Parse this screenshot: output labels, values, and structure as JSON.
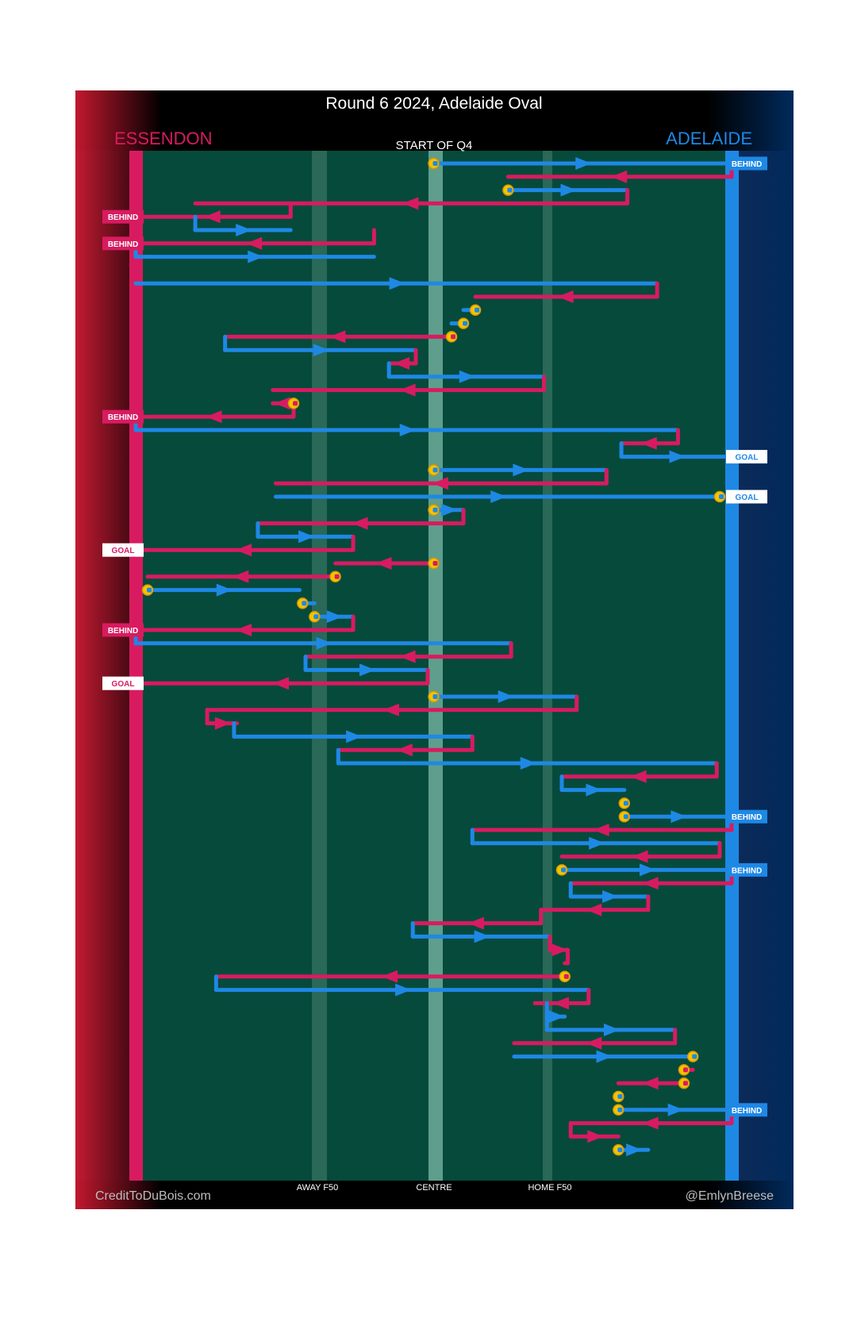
{
  "title": "Round 6 2024, Adelaide Oval",
  "teams": {
    "away": {
      "name": "ESSENDON",
      "color": "#d81b60"
    },
    "home": {
      "name": "ADELAIDE",
      "color": "#1e88e5"
    }
  },
  "subtitle": "START OF Q4",
  "axis_labels": {
    "away_f50": "AWAY F50",
    "centre": "CENTRE",
    "home_f50": "HOME F50"
  },
  "credits": {
    "left": "CreditToDuBois.com",
    "right": "@EmlynBreese"
  },
  "chart_data": {
    "type": "line",
    "title": "Round 6 2024, Adelaide Oval",
    "subtitle": "START OF Q4",
    "description": "Ball movement chain chart; x = field position from Essendon goal (0) to Adelaide goal (100), y = chain step in time order",
    "xlim": [
      0,
      100
    ],
    "x_ticks": [
      {
        "label": "AWAY F50",
        "x": 30
      },
      {
        "label": "CENTRE",
        "x": 50
      },
      {
        "label": "HOME F50",
        "x": 70
      }
    ],
    "ylim": [
      1,
      76
    ],
    "series": [
      {
        "name": "ADELAIDE",
        "color": "#1e88e5",
        "segments": [
          {
            "step": 1,
            "from": 50,
            "to": 100
          },
          {
            "step": 3,
            "from": 62.5,
            "to": 82.5
          },
          {
            "step": 6,
            "from": 10,
            "to": 26
          },
          {
            "step": 8,
            "from": 0,
            "to": 40
          },
          {
            "step": 10,
            "from": 0,
            "to": 87.5
          },
          {
            "step": 12,
            "from": 57,
            "to": 55
          },
          {
            "step": 13,
            "from": 55,
            "to": 53
          },
          {
            "step": 15,
            "from": 15,
            "to": 47
          },
          {
            "step": 17,
            "from": 42.5,
            "to": 68.5
          },
          {
            "step": 21,
            "from": 0,
            "to": 91
          },
          {
            "step": 23,
            "from": 81.5,
            "to": 100
          },
          {
            "step": 24,
            "from": 50,
            "to": 79
          },
          {
            "step": 26,
            "from": 23.5,
            "to": 98
          },
          {
            "step": 27,
            "from": 50,
            "to": 55
          },
          {
            "step": 29,
            "from": 20.5,
            "to": 36.5
          },
          {
            "step": 33,
            "from": 2,
            "to": 27.5
          },
          {
            "step": 34,
            "from": 28,
            "to": 30
          },
          {
            "step": 35,
            "from": 30,
            "to": 36.5
          },
          {
            "step": 37,
            "from": 0,
            "to": 63
          },
          {
            "step": 39,
            "from": 28.5,
            "to": 49
          },
          {
            "step": 41,
            "from": 50,
            "to": 74
          },
          {
            "step": 44,
            "from": 16.5,
            "to": 56.5
          },
          {
            "step": 46,
            "from": 34,
            "to": 97.5
          },
          {
            "step": 48,
            "from": 71.5,
            "to": 82
          },
          {
            "step": 49,
            "from": 82,
            "to": 82
          },
          {
            "step": 50,
            "from": 82,
            "to": 100
          },
          {
            "step": 52,
            "from": 56.5,
            "to": 98
          },
          {
            "step": 54,
            "from": 71.5,
            "to": 100
          },
          {
            "step": 56,
            "from": 73,
            "to": 86
          },
          {
            "step": 59,
            "from": 46.5,
            "to": 69.5
          },
          {
            "step": 63,
            "from": 13.5,
            "to": 76
          },
          {
            "step": 65,
            "from": 69,
            "to": 72
          },
          {
            "step": 66,
            "from": 69,
            "to": 90.5
          },
          {
            "step": 68,
            "from": 63.5,
            "to": 93.5
          },
          {
            "step": 71,
            "from": 81,
            "to": 81
          },
          {
            "step": 72,
            "from": 81,
            "to": 100
          },
          {
            "step": 75,
            "from": 81,
            "to": 86
          }
        ]
      },
      {
        "name": "ESSENDON",
        "color": "#d81b60",
        "segments": [
          {
            "step": 2,
            "from": 100,
            "to": 62.5
          },
          {
            "step": 4,
            "from": 82.5,
            "to": 10
          },
          {
            "step": 5,
            "from": 26,
            "to": 0
          },
          {
            "step": 7,
            "from": 40,
            "to": 0
          },
          {
            "step": 11,
            "from": 87.5,
            "to": 57
          },
          {
            "step": 14,
            "from": 53,
            "to": 15
          },
          {
            "step": 16,
            "from": 47,
            "to": 42.5
          },
          {
            "step": 18,
            "from": 68.5,
            "to": 23
          },
          {
            "step": 19,
            "from": 26.5,
            "to": 23
          },
          {
            "step": 20,
            "from": 26.5,
            "to": 0
          },
          {
            "step": 22,
            "from": 91,
            "to": 81.5
          },
          {
            "step": 25,
            "from": 79,
            "to": 23.5
          },
          {
            "step": 28,
            "from": 55,
            "to": 20.5
          },
          {
            "step": 30,
            "from": 36.5,
            "to": 0
          },
          {
            "step": 31,
            "from": 50,
            "to": 33.5
          },
          {
            "step": 32,
            "from": 33.5,
            "to": 2
          },
          {
            "step": 36,
            "from": 36.5,
            "to": 0
          },
          {
            "step": 38,
            "from": 63,
            "to": 28.5
          },
          {
            "step": 40,
            "from": 49,
            "to": 0
          },
          {
            "step": 42,
            "from": 74,
            "to": 12
          },
          {
            "step": 43,
            "from": 12,
            "to": 17
          },
          {
            "step": 45,
            "from": 56.5,
            "to": 34
          },
          {
            "step": 47,
            "from": 97.5,
            "to": 71.5
          },
          {
            "step": 51,
            "from": 100,
            "to": 56.5
          },
          {
            "step": 53,
            "from": 98,
            "to": 71.5
          },
          {
            "step": 55,
            "from": 100,
            "to": 73
          },
          {
            "step": 57,
            "from": 86,
            "to": 68
          },
          {
            "step": 58,
            "from": 68,
            "to": 46.5
          },
          {
            "step": 60,
            "from": 69.5,
            "to": 72.5
          },
          {
            "step": 61,
            "from": 72.5,
            "to": 72
          },
          {
            "step": 62,
            "from": 72,
            "to": 13.5
          },
          {
            "step": 64,
            "from": 76,
            "to": 67
          },
          {
            "step": 67,
            "from": 90.5,
            "to": 63.5
          },
          {
            "step": 69,
            "from": 93.5,
            "to": 92
          },
          {
            "step": 70,
            "from": 92,
            "to": 81
          },
          {
            "step": 73,
            "from": 100,
            "to": 73
          },
          {
            "step": 74,
            "from": 73,
            "to": 81
          }
        ]
      }
    ],
    "chain_starts": [
      {
        "step": 1,
        "x": 50
      },
      {
        "step": 3,
        "x": 62.5
      },
      {
        "step": 12,
        "x": 57
      },
      {
        "step": 13,
        "x": 55
      },
      {
        "step": 14,
        "x": 53
      },
      {
        "step": 19,
        "x": 26.5
      },
      {
        "step": 24,
        "x": 50
      },
      {
        "step": 26,
        "x": 98
      },
      {
        "step": 27,
        "x": 50
      },
      {
        "step": 31,
        "x": 50
      },
      {
        "step": 32,
        "x": 33.5
      },
      {
        "step": 33,
        "x": 2
      },
      {
        "step": 34,
        "x": 28
      },
      {
        "step": 35,
        "x": 30
      },
      {
        "step": 41,
        "x": 50
      },
      {
        "step": 49,
        "x": 82
      },
      {
        "step": 50,
        "x": 82
      },
      {
        "step": 54,
        "x": 71.5
      },
      {
        "step": 62,
        "x": 72
      },
      {
        "step": 68,
        "x": 93.5
      },
      {
        "step": 69,
        "x": 92
      },
      {
        "step": 70,
        "x": 92
      },
      {
        "step": 71,
        "x": 81
      },
      {
        "step": 72,
        "x": 81
      },
      {
        "step": 75,
        "x": 81
      }
    ],
    "outcomes": [
      {
        "step": 1,
        "team": "ADELAIDE",
        "result": "BEHIND"
      },
      {
        "step": 5,
        "team": "ESSENDON",
        "result": "BEHIND"
      },
      {
        "step": 7,
        "team": "ESSENDON",
        "result": "BEHIND"
      },
      {
        "step": 20,
        "team": "ESSENDON",
        "result": "BEHIND"
      },
      {
        "step": 23,
        "team": "ADELAIDE",
        "result": "GOAL"
      },
      {
        "step": 26,
        "team": "ADELAIDE",
        "result": "GOAL"
      },
      {
        "step": 30,
        "team": "ESSENDON",
        "result": "GOAL"
      },
      {
        "step": 36,
        "team": "ESSENDON",
        "result": "BEHIND"
      },
      {
        "step": 40,
        "team": "ESSENDON",
        "result": "GOAL"
      },
      {
        "step": 50,
        "team": "ADELAIDE",
        "result": "BEHIND"
      },
      {
        "step": 54,
        "team": "ADELAIDE",
        "result": "BEHIND"
      },
      {
        "step": 72,
        "team": "ADELAIDE",
        "result": "BEHIND"
      }
    ]
  }
}
